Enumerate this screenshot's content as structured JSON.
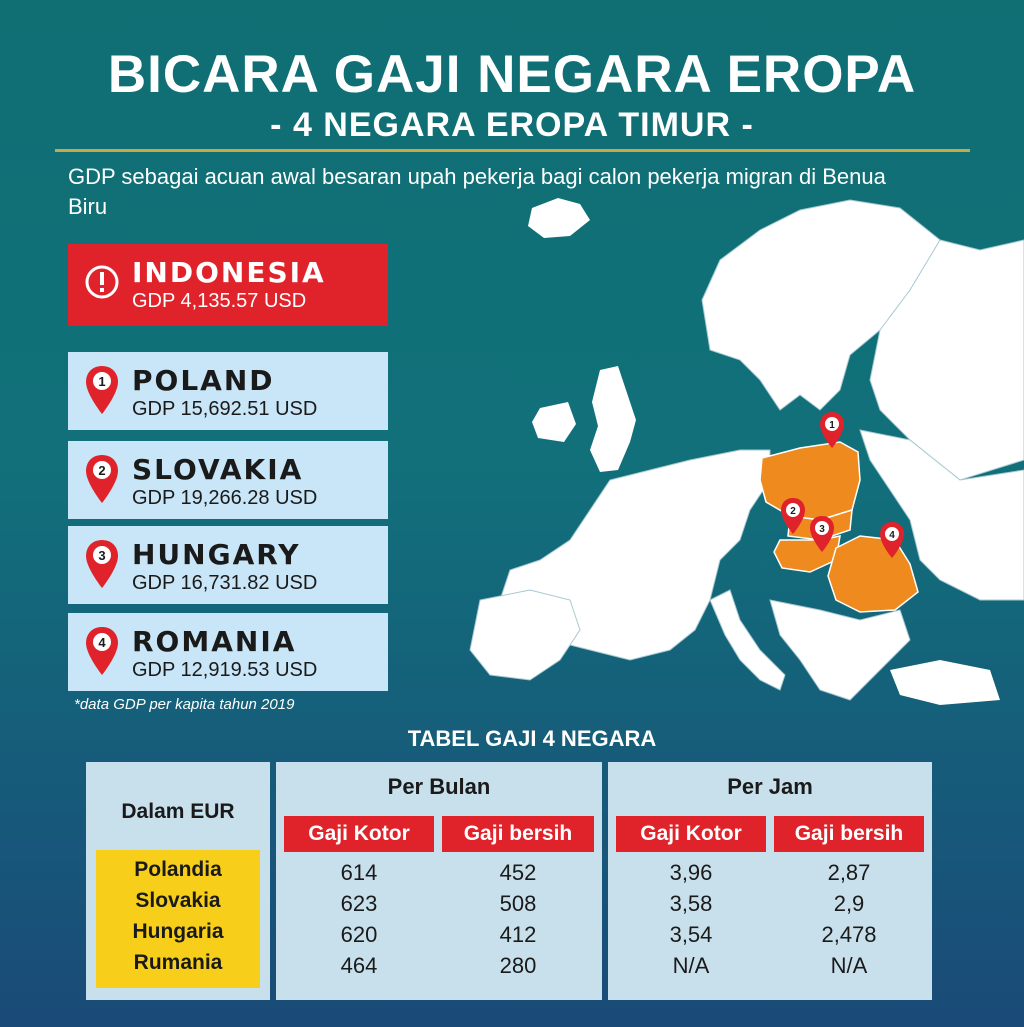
{
  "header": {
    "title": "BICARA GAJI NEGARA EROPA",
    "subtitle": "- 4 NEGARA EROPA TIMUR -",
    "intro": "GDP sebagai acuan awal besaran upah pekerja bagi calon pekerja migran di Benua Biru"
  },
  "alert_card": {
    "name": "INDONESIA",
    "gdp": "GDP 4,135.57 USD",
    "icon": "exclamation-icon"
  },
  "countries": [
    {
      "number": "1",
      "name": "POLAND",
      "gdp": "GDP 15,692.51 USD"
    },
    {
      "number": "2",
      "name": "SLOVAKIA",
      "gdp": "GDP 19,266.28 USD"
    },
    {
      "number": "3",
      "name": "HUNGARY",
      "gdp": "GDP 16,731.82 USD"
    },
    {
      "number": "4",
      "name": "ROMANIA",
      "gdp": "GDP 12,919.53 USD"
    }
  ],
  "note": "*data GDP per kapita tahun 2019",
  "map": {
    "pins": [
      "1",
      "2",
      "3",
      "4"
    ],
    "highlight_color": "#ef8a1e",
    "pin_color": "#e0232b"
  },
  "table": {
    "title": "TABEL GAJI 4 NEGARA",
    "corner_label": "Dalam EUR",
    "per_bulan": "Per Bulan",
    "per_jam": "Per Jam",
    "col_gross": "Gaji Kotor",
    "col_net": "Gaji bersih",
    "rows": [
      {
        "country": "Polandia",
        "bulan_kotor": "614",
        "bulan_bersih": "452",
        "jam_kotor": "3,96",
        "jam_bersih": "2,87"
      },
      {
        "country": "Slovakia",
        "bulan_kotor": "623",
        "bulan_bersih": "508",
        "jam_kotor": "3,58",
        "jam_bersih": "2,9"
      },
      {
        "country": "Hungaria",
        "bulan_kotor": "620",
        "bulan_bersih": "412",
        "jam_kotor": "3,54",
        "jam_bersih": "2,478"
      },
      {
        "country": "Rumania",
        "bulan_kotor": "464",
        "bulan_bersih": "280",
        "jam_kotor": "N/A",
        "jam_bersih": "N/A"
      }
    ]
  },
  "colors": {
    "accent_red": "#e0232b",
    "card_blue": "#c8e6f7",
    "highlight_yellow": "#f7cf1a",
    "rule_gold": "#c8a94a"
  }
}
